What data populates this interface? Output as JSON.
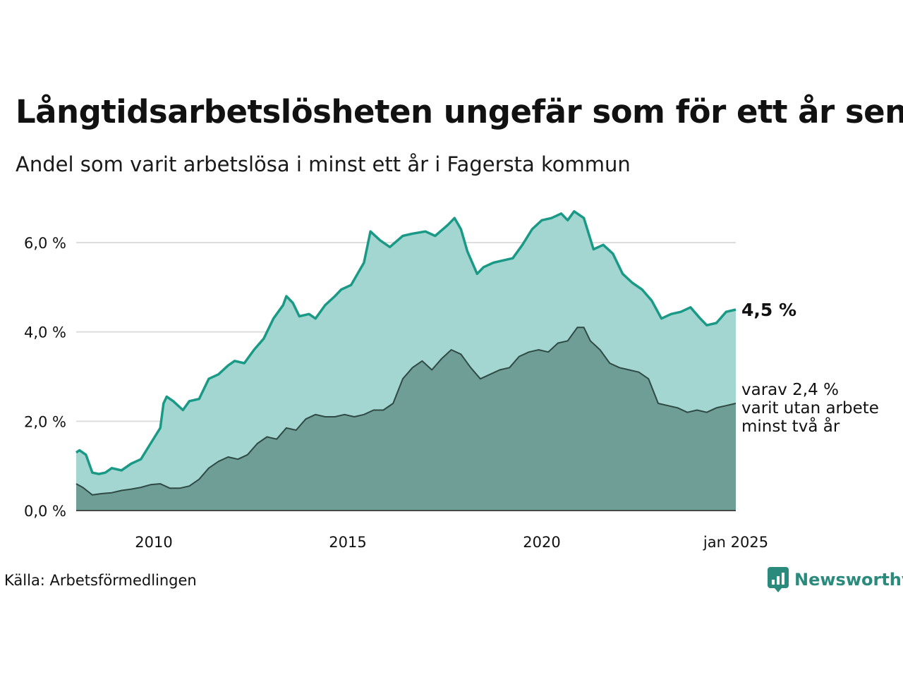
{
  "title": "Långtidsarbetslösheten ungefär som för ett år sen",
  "subtitle": "Andel som varit arbetslösa i minst ett år i Fagersta kommun",
  "source": "Källa: Arbetsförmedlingen",
  "brand": {
    "name": "Newsworthy",
    "icon": "newsworthy-logo-icon"
  },
  "colors": {
    "line_total": "#1a9a86",
    "area_total": "#a3d6d0",
    "line_two_year": "#2f4a45",
    "area_two_year": "#6f9e97",
    "grid": "#dddddd"
  },
  "chart_data": {
    "type": "area",
    "x_start": "2008-01",
    "x_end": "2025-01",
    "xticks": [
      "2010",
      "2015",
      "2020",
      "jan 2025"
    ],
    "yticks": [
      "0,0 %",
      "2,0 %",
      "4,0 %",
      "6,0 %"
    ],
    "ylim": [
      0,
      7
    ],
    "grid": true,
    "series": [
      {
        "name": "total",
        "end_label": "4,5 %",
        "points": [
          [
            "2008-01",
            1.3
          ],
          [
            "2008-02",
            1.35
          ],
          [
            "2008-04",
            1.25
          ],
          [
            "2008-06",
            0.85
          ],
          [
            "2008-08",
            0.82
          ],
          [
            "2008-10",
            0.85
          ],
          [
            "2008-12",
            0.95
          ],
          [
            "2009-03",
            0.9
          ],
          [
            "2009-06",
            1.05
          ],
          [
            "2009-09",
            1.15
          ],
          [
            "2009-12",
            1.5
          ],
          [
            "2010-03",
            1.85
          ],
          [
            "2010-04",
            2.4
          ],
          [
            "2010-05",
            2.55
          ],
          [
            "2010-07",
            2.45
          ],
          [
            "2010-10",
            2.25
          ],
          [
            "2010-12",
            2.45
          ],
          [
            "2011-03",
            2.5
          ],
          [
            "2011-06",
            2.95
          ],
          [
            "2011-09",
            3.05
          ],
          [
            "2011-12",
            3.25
          ],
          [
            "2012-02",
            3.35
          ],
          [
            "2012-05",
            3.3
          ],
          [
            "2012-08",
            3.6
          ],
          [
            "2012-11",
            3.85
          ],
          [
            "2013-02",
            4.3
          ],
          [
            "2013-05",
            4.6
          ],
          [
            "2013-06",
            4.8
          ],
          [
            "2013-08",
            4.65
          ],
          [
            "2013-10",
            4.35
          ],
          [
            "2014-01",
            4.4
          ],
          [
            "2014-03",
            4.3
          ],
          [
            "2014-06",
            4.6
          ],
          [
            "2014-09",
            4.8
          ],
          [
            "2014-11",
            4.95
          ],
          [
            "2015-02",
            5.05
          ],
          [
            "2015-06",
            5.55
          ],
          [
            "2015-08",
            6.25
          ],
          [
            "2015-11",
            6.05
          ],
          [
            "2016-02",
            5.9
          ],
          [
            "2016-06",
            6.15
          ],
          [
            "2016-09",
            6.2
          ],
          [
            "2017-01",
            6.25
          ],
          [
            "2017-04",
            6.15
          ],
          [
            "2017-08",
            6.4
          ],
          [
            "2017-10",
            6.55
          ],
          [
            "2017-12",
            6.3
          ],
          [
            "2018-02",
            5.8
          ],
          [
            "2018-05",
            5.3
          ],
          [
            "2018-07",
            5.45
          ],
          [
            "2018-10",
            5.55
          ],
          [
            "2019-01",
            5.6
          ],
          [
            "2019-04",
            5.65
          ],
          [
            "2019-07",
            5.95
          ],
          [
            "2019-10",
            6.3
          ],
          [
            "2020-01",
            6.5
          ],
          [
            "2020-04",
            6.55
          ],
          [
            "2020-07",
            6.65
          ],
          [
            "2020-09",
            6.5
          ],
          [
            "2020-11",
            6.7
          ],
          [
            "2021-02",
            6.55
          ],
          [
            "2021-05",
            5.85
          ],
          [
            "2021-08",
            5.95
          ],
          [
            "2021-11",
            5.75
          ],
          [
            "2022-02",
            5.3
          ],
          [
            "2022-05",
            5.1
          ],
          [
            "2022-08",
            4.95
          ],
          [
            "2022-11",
            4.7
          ],
          [
            "2023-02",
            4.3
          ],
          [
            "2023-05",
            4.4
          ],
          [
            "2023-08",
            4.45
          ],
          [
            "2023-11",
            4.55
          ],
          [
            "2024-02",
            4.3
          ],
          [
            "2024-04",
            4.15
          ],
          [
            "2024-07",
            4.2
          ],
          [
            "2024-10",
            4.45
          ],
          [
            "2025-01",
            4.5
          ]
        ]
      },
      {
        "name": "varav minst två år",
        "end_label": [
          "varav 2,4 %",
          "varit utan arbete",
          "minst två år"
        ],
        "points": [
          [
            "2008-01",
            0.6
          ],
          [
            "2008-03",
            0.52
          ],
          [
            "2008-06",
            0.35
          ],
          [
            "2008-09",
            0.38
          ],
          [
            "2008-12",
            0.4
          ],
          [
            "2009-03",
            0.45
          ],
          [
            "2009-06",
            0.48
          ],
          [
            "2009-09",
            0.52
          ],
          [
            "2009-12",
            0.58
          ],
          [
            "2010-03",
            0.6
          ],
          [
            "2010-06",
            0.5
          ],
          [
            "2010-09",
            0.5
          ],
          [
            "2010-12",
            0.55
          ],
          [
            "2011-03",
            0.7
          ],
          [
            "2011-06",
            0.95
          ],
          [
            "2011-09",
            1.1
          ],
          [
            "2011-12",
            1.2
          ],
          [
            "2012-03",
            1.15
          ],
          [
            "2012-06",
            1.25
          ],
          [
            "2012-09",
            1.5
          ],
          [
            "2012-12",
            1.65
          ],
          [
            "2013-03",
            1.6
          ],
          [
            "2013-06",
            1.85
          ],
          [
            "2013-09",
            1.8
          ],
          [
            "2013-12",
            2.05
          ],
          [
            "2014-03",
            2.15
          ],
          [
            "2014-06",
            2.1
          ],
          [
            "2014-09",
            2.1
          ],
          [
            "2014-12",
            2.15
          ],
          [
            "2015-03",
            2.1
          ],
          [
            "2015-06",
            2.15
          ],
          [
            "2015-09",
            2.25
          ],
          [
            "2015-12",
            2.25
          ],
          [
            "2016-03",
            2.4
          ],
          [
            "2016-06",
            2.95
          ],
          [
            "2016-09",
            3.2
          ],
          [
            "2016-12",
            3.35
          ],
          [
            "2017-03",
            3.15
          ],
          [
            "2017-06",
            3.4
          ],
          [
            "2017-09",
            3.6
          ],
          [
            "2017-12",
            3.5
          ],
          [
            "2018-03",
            3.2
          ],
          [
            "2018-06",
            2.95
          ],
          [
            "2018-09",
            3.05
          ],
          [
            "2018-12",
            3.15
          ],
          [
            "2019-03",
            3.2
          ],
          [
            "2019-06",
            3.45
          ],
          [
            "2019-09",
            3.55
          ],
          [
            "2019-12",
            3.6
          ],
          [
            "2020-03",
            3.55
          ],
          [
            "2020-06",
            3.75
          ],
          [
            "2020-09",
            3.8
          ],
          [
            "2020-12",
            4.1
          ],
          [
            "2021-02",
            4.1
          ],
          [
            "2021-04",
            3.8
          ],
          [
            "2021-07",
            3.6
          ],
          [
            "2021-10",
            3.3
          ],
          [
            "2022-01",
            3.2
          ],
          [
            "2022-04",
            3.15
          ],
          [
            "2022-07",
            3.1
          ],
          [
            "2022-10",
            2.95
          ],
          [
            "2023-01",
            2.4
          ],
          [
            "2023-04",
            2.35
          ],
          [
            "2023-07",
            2.3
          ],
          [
            "2023-10",
            2.2
          ],
          [
            "2024-01",
            2.25
          ],
          [
            "2024-04",
            2.2
          ],
          [
            "2024-07",
            2.3
          ],
          [
            "2024-10",
            2.35
          ],
          [
            "2025-01",
            2.4
          ]
        ]
      }
    ]
  }
}
